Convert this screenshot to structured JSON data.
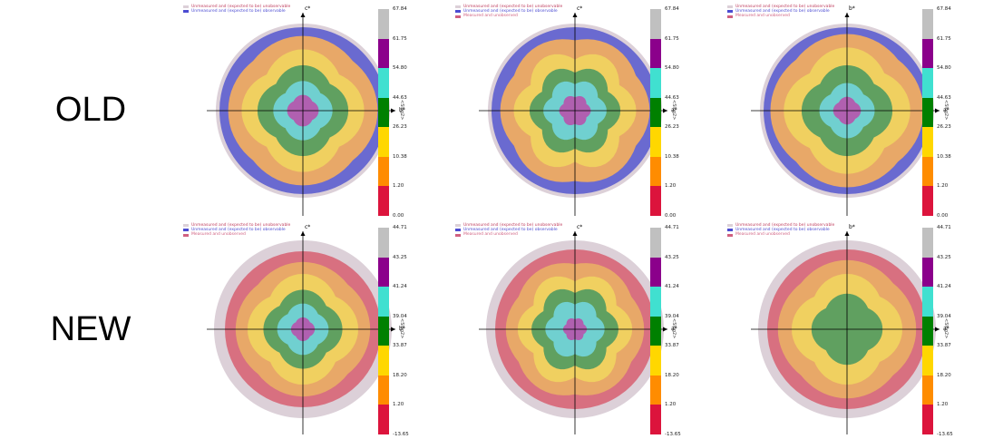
{
  "row_labels": {
    "old": "OLD",
    "new": "NEW"
  },
  "colorbar": {
    "title": "<Slog2>",
    "colors": [
      "#dc143c",
      "#ff8c00",
      "#ffd700",
      "#008000",
      "#40e0d0",
      "#8b008b",
      "#c0c0c0"
    ]
  },
  "chart_data": [
    {
      "type": "heatmap",
      "id": "old-1",
      "xlabel": "b*",
      "ylabel": "c*",
      "legend": [
        "Unmeasured and (expected to be) unobservable",
        "Unmeasured and (expected to be) observable"
      ],
      "legend_colors": [
        "#dcd0d8",
        "#4b4bd2"
      ],
      "colorbar_ticks": [
        "67.84",
        "61.75",
        "54.80",
        "44.63",
        "26.23",
        "10.38",
        "1.20",
        "0.00"
      ],
      "levels_outer_to_inner": [
        "#dcd0d8",
        "#6a6ad0",
        "#e8a868",
        "#f0d060",
        "#60a060",
        "#70d0d0",
        "#b060b0"
      ]
    },
    {
      "type": "heatmap",
      "id": "old-2",
      "xlabel": "a*",
      "ylabel": "c*",
      "legend": [
        "Unmeasured and (expected to be) unobservable",
        "Unmeasured and (expected to be) observable",
        "Measured and unobserved"
      ],
      "legend_colors": [
        "#dcd0d8",
        "#4b4bd2",
        "#d06080"
      ],
      "colorbar_ticks": [
        "67.84",
        "61.75",
        "54.80",
        "44.63",
        "26.23",
        "10.38",
        "1.20",
        "0.00"
      ],
      "levels_outer_to_inner": [
        "#dcd0d8",
        "#6a6ad0",
        "#e8a868",
        "#f0d060",
        "#60a060",
        "#70d0d0",
        "#b060b0"
      ]
    },
    {
      "type": "heatmap",
      "id": "old-3",
      "xlabel": "a*",
      "ylabel": "b*",
      "legend": [
        "Unmeasured and (expected to be) unobservable",
        "Unmeasured and (expected to be) observable",
        "Measured and unobserved"
      ],
      "legend_colors": [
        "#dcd0d8",
        "#4b4bd2",
        "#d06080"
      ],
      "colorbar_ticks": [
        "67.84",
        "61.75",
        "54.80",
        "44.63",
        "26.23",
        "10.38",
        "1.20",
        "0.00"
      ],
      "levels_outer_to_inner": [
        "#dcd0d8",
        "#6a6ad0",
        "#e8a868",
        "#f0d060",
        "#60a060",
        "#70d0d0",
        "#b060b0"
      ]
    },
    {
      "type": "heatmap",
      "id": "new-1",
      "xlabel": "b*",
      "ylabel": "c*",
      "legend": [
        "Unmeasured and (expected to be) unobservable",
        "Unmeasured and (expected to be) observable",
        "Measured and unobserved"
      ],
      "legend_colors": [
        "#dcd0d8",
        "#4b4bd2",
        "#d06080"
      ],
      "colorbar_ticks": [
        "44.71",
        "43.25",
        "41.24",
        "39.04",
        "33.87",
        "18.20",
        "1.20",
        "-13.65"
      ],
      "levels_outer_to_inner": [
        "#dcd0d8",
        "#d87080",
        "#e8a868",
        "#f0d060",
        "#60a060",
        "#70d0d0",
        "#b060b0"
      ]
    },
    {
      "type": "heatmap",
      "id": "new-2",
      "xlabel": "a*",
      "ylabel": "c*",
      "legend": [
        "Unmeasured and (expected to be) unobservable",
        "Unmeasured and (expected to be) observable",
        "Measured and unobserved"
      ],
      "legend_colors": [
        "#dcd0d8",
        "#4b4bd2",
        "#d06080"
      ],
      "colorbar_ticks": [
        "44.71",
        "43.25",
        "41.24",
        "39.04",
        "33.87",
        "18.20",
        "1.20",
        "-13.65"
      ],
      "levels_outer_to_inner": [
        "#dcd0d8",
        "#d87080",
        "#e8a868",
        "#f0d060",
        "#60a060",
        "#70d0d0",
        "#b060b0"
      ]
    },
    {
      "type": "heatmap",
      "id": "new-3",
      "xlabel": "a*",
      "ylabel": "b*",
      "legend": [
        "Unmeasured and (expected to be) unobservable",
        "Unmeasured and (expected to be) observable",
        "Measured and unobserved"
      ],
      "legend_colors": [
        "#dcd0d8",
        "#4b4bd2",
        "#d06080"
      ],
      "colorbar_ticks": [
        "44.71",
        "43.25",
        "41.24",
        "39.04",
        "33.87",
        "18.20",
        "1.20",
        "-13.65"
      ],
      "levels_outer_to_inner": [
        "#dcd0d8",
        "#d87080",
        "#e8a868",
        "#f0d060",
        "#60a060"
      ]
    }
  ]
}
